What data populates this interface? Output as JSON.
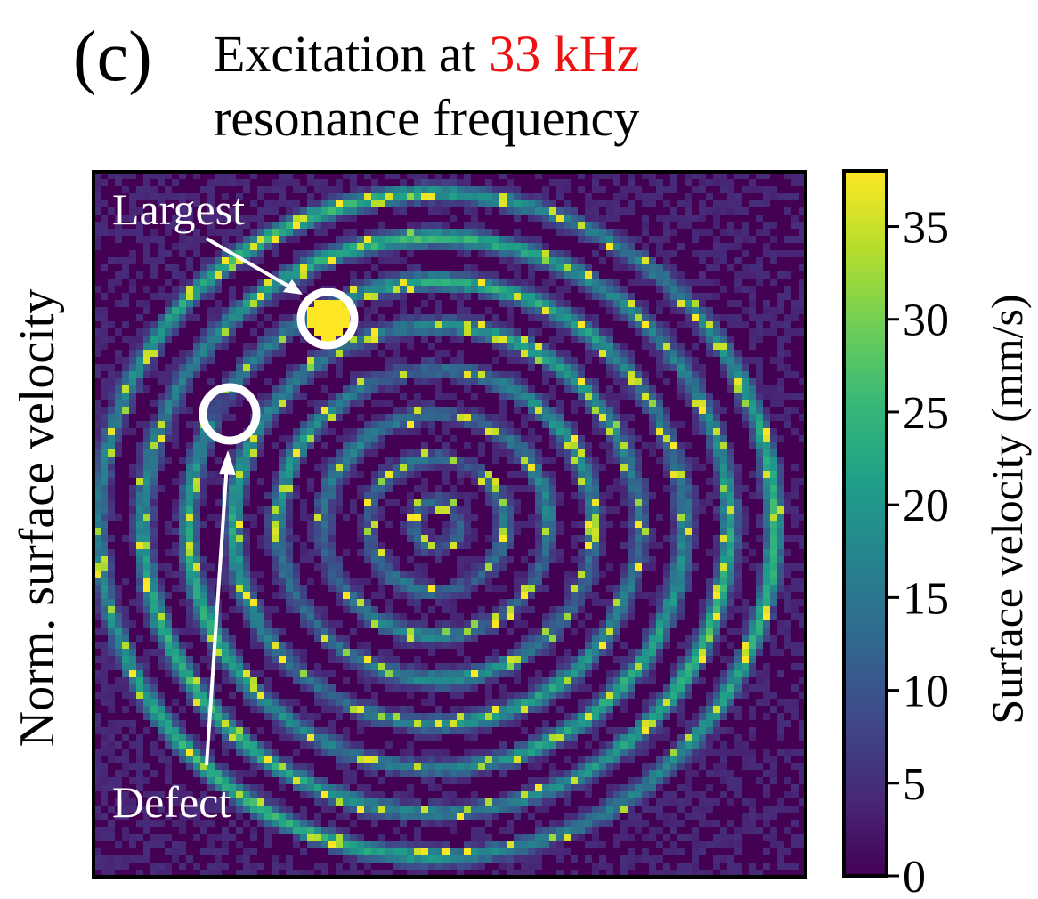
{
  "panel_label": "(c)",
  "title": {
    "line1_prefix": "Excitation at ",
    "line1_highlight": "33 kHz",
    "line2": "resonance frequency",
    "highlight_color": "#ee1111"
  },
  "left_label": "Norm. surface velocity",
  "annotations": {
    "largest": "Largest",
    "defect": "Defect"
  },
  "chart_data": {
    "type": "heatmap",
    "title": "Excitation at 33 kHz resonance frequency",
    "xlabel": "",
    "ylabel": "Norm. surface velocity",
    "colormap": "viridis",
    "colorbar": {
      "label": "Surface velocity (mm/s)",
      "range": [
        0,
        38
      ],
      "ticks": [
        0,
        5,
        10,
        15,
        20,
        25,
        30,
        35
      ],
      "tick_labels": [
        "0",
        "5",
        "10",
        "15",
        "20",
        "25",
        "30",
        "35"
      ]
    },
    "pattern": "concentric rings",
    "ring_count": 8,
    "peak_value": 38,
    "background_value": 2
  }
}
